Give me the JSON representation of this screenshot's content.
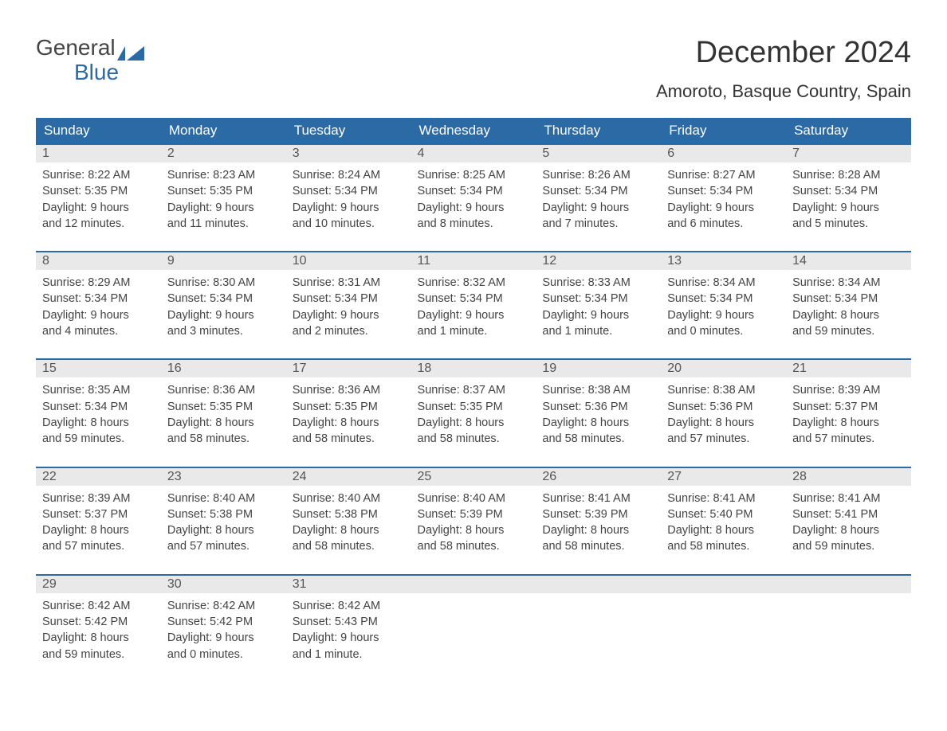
{
  "logo": {
    "text_top": "General",
    "text_bottom": "Blue",
    "top_color": "#444444",
    "bottom_color": "#2b6aa5"
  },
  "title": "December 2024",
  "location": "Amoroto, Basque Country, Spain",
  "colors": {
    "header_bg": "#2b6aa5",
    "header_text": "#ffffff",
    "daynum_bg": "#e9e9e9",
    "daynum_border": "#2b6aa5",
    "text": "#444444",
    "background": "#ffffff"
  },
  "weekdays": [
    "Sunday",
    "Monday",
    "Tuesday",
    "Wednesday",
    "Thursday",
    "Friday",
    "Saturday"
  ],
  "weeks": [
    [
      {
        "n": "1",
        "sunrise": "Sunrise: 8:22 AM",
        "sunset": "Sunset: 5:35 PM",
        "day1": "Daylight: 9 hours",
        "day2": "and 12 minutes."
      },
      {
        "n": "2",
        "sunrise": "Sunrise: 8:23 AM",
        "sunset": "Sunset: 5:35 PM",
        "day1": "Daylight: 9 hours",
        "day2": "and 11 minutes."
      },
      {
        "n": "3",
        "sunrise": "Sunrise: 8:24 AM",
        "sunset": "Sunset: 5:34 PM",
        "day1": "Daylight: 9 hours",
        "day2": "and 10 minutes."
      },
      {
        "n": "4",
        "sunrise": "Sunrise: 8:25 AM",
        "sunset": "Sunset: 5:34 PM",
        "day1": "Daylight: 9 hours",
        "day2": "and 8 minutes."
      },
      {
        "n": "5",
        "sunrise": "Sunrise: 8:26 AM",
        "sunset": "Sunset: 5:34 PM",
        "day1": "Daylight: 9 hours",
        "day2": "and 7 minutes."
      },
      {
        "n": "6",
        "sunrise": "Sunrise: 8:27 AM",
        "sunset": "Sunset: 5:34 PM",
        "day1": "Daylight: 9 hours",
        "day2": "and 6 minutes."
      },
      {
        "n": "7",
        "sunrise": "Sunrise: 8:28 AM",
        "sunset": "Sunset: 5:34 PM",
        "day1": "Daylight: 9 hours",
        "day2": "and 5 minutes."
      }
    ],
    [
      {
        "n": "8",
        "sunrise": "Sunrise: 8:29 AM",
        "sunset": "Sunset: 5:34 PM",
        "day1": "Daylight: 9 hours",
        "day2": "and 4 minutes."
      },
      {
        "n": "9",
        "sunrise": "Sunrise: 8:30 AM",
        "sunset": "Sunset: 5:34 PM",
        "day1": "Daylight: 9 hours",
        "day2": "and 3 minutes."
      },
      {
        "n": "10",
        "sunrise": "Sunrise: 8:31 AM",
        "sunset": "Sunset: 5:34 PM",
        "day1": "Daylight: 9 hours",
        "day2": "and 2 minutes."
      },
      {
        "n": "11",
        "sunrise": "Sunrise: 8:32 AM",
        "sunset": "Sunset: 5:34 PM",
        "day1": "Daylight: 9 hours",
        "day2": "and 1 minute."
      },
      {
        "n": "12",
        "sunrise": "Sunrise: 8:33 AM",
        "sunset": "Sunset: 5:34 PM",
        "day1": "Daylight: 9 hours",
        "day2": "and 1 minute."
      },
      {
        "n": "13",
        "sunrise": "Sunrise: 8:34 AM",
        "sunset": "Sunset: 5:34 PM",
        "day1": "Daylight: 9 hours",
        "day2": "and 0 minutes."
      },
      {
        "n": "14",
        "sunrise": "Sunrise: 8:34 AM",
        "sunset": "Sunset: 5:34 PM",
        "day1": "Daylight: 8 hours",
        "day2": "and 59 minutes."
      }
    ],
    [
      {
        "n": "15",
        "sunrise": "Sunrise: 8:35 AM",
        "sunset": "Sunset: 5:34 PM",
        "day1": "Daylight: 8 hours",
        "day2": "and 59 minutes."
      },
      {
        "n": "16",
        "sunrise": "Sunrise: 8:36 AM",
        "sunset": "Sunset: 5:35 PM",
        "day1": "Daylight: 8 hours",
        "day2": "and 58 minutes."
      },
      {
        "n": "17",
        "sunrise": "Sunrise: 8:36 AM",
        "sunset": "Sunset: 5:35 PM",
        "day1": "Daylight: 8 hours",
        "day2": "and 58 minutes."
      },
      {
        "n": "18",
        "sunrise": "Sunrise: 8:37 AM",
        "sunset": "Sunset: 5:35 PM",
        "day1": "Daylight: 8 hours",
        "day2": "and 58 minutes."
      },
      {
        "n": "19",
        "sunrise": "Sunrise: 8:38 AM",
        "sunset": "Sunset: 5:36 PM",
        "day1": "Daylight: 8 hours",
        "day2": "and 58 minutes."
      },
      {
        "n": "20",
        "sunrise": "Sunrise: 8:38 AM",
        "sunset": "Sunset: 5:36 PM",
        "day1": "Daylight: 8 hours",
        "day2": "and 57 minutes."
      },
      {
        "n": "21",
        "sunrise": "Sunrise: 8:39 AM",
        "sunset": "Sunset: 5:37 PM",
        "day1": "Daylight: 8 hours",
        "day2": "and 57 minutes."
      }
    ],
    [
      {
        "n": "22",
        "sunrise": "Sunrise: 8:39 AM",
        "sunset": "Sunset: 5:37 PM",
        "day1": "Daylight: 8 hours",
        "day2": "and 57 minutes."
      },
      {
        "n": "23",
        "sunrise": "Sunrise: 8:40 AM",
        "sunset": "Sunset: 5:38 PM",
        "day1": "Daylight: 8 hours",
        "day2": "and 57 minutes."
      },
      {
        "n": "24",
        "sunrise": "Sunrise: 8:40 AM",
        "sunset": "Sunset: 5:38 PM",
        "day1": "Daylight: 8 hours",
        "day2": "and 58 minutes."
      },
      {
        "n": "25",
        "sunrise": "Sunrise: 8:40 AM",
        "sunset": "Sunset: 5:39 PM",
        "day1": "Daylight: 8 hours",
        "day2": "and 58 minutes."
      },
      {
        "n": "26",
        "sunrise": "Sunrise: 8:41 AM",
        "sunset": "Sunset: 5:39 PM",
        "day1": "Daylight: 8 hours",
        "day2": "and 58 minutes."
      },
      {
        "n": "27",
        "sunrise": "Sunrise: 8:41 AM",
        "sunset": "Sunset: 5:40 PM",
        "day1": "Daylight: 8 hours",
        "day2": "and 58 minutes."
      },
      {
        "n": "28",
        "sunrise": "Sunrise: 8:41 AM",
        "sunset": "Sunset: 5:41 PM",
        "day1": "Daylight: 8 hours",
        "day2": "and 59 minutes."
      }
    ],
    [
      {
        "n": "29",
        "sunrise": "Sunrise: 8:42 AM",
        "sunset": "Sunset: 5:42 PM",
        "day1": "Daylight: 8 hours",
        "day2": "and 59 minutes."
      },
      {
        "n": "30",
        "sunrise": "Sunrise: 8:42 AM",
        "sunset": "Sunset: 5:42 PM",
        "day1": "Daylight: 9 hours",
        "day2": "and 0 minutes."
      },
      {
        "n": "31",
        "sunrise": "Sunrise: 8:42 AM",
        "sunset": "Sunset: 5:43 PM",
        "day1": "Daylight: 9 hours",
        "day2": "and 1 minute."
      },
      null,
      null,
      null,
      null
    ]
  ]
}
